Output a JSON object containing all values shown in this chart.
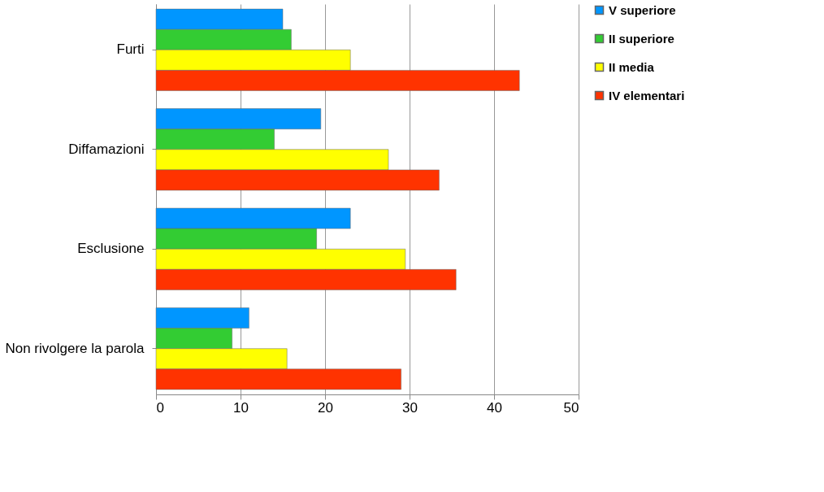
{
  "chart_data": {
    "type": "bar",
    "orientation": "horizontal",
    "categories": [
      "Furti",
      "Diffamazioni",
      "Esclusione",
      "Non rivolgere la parola"
    ],
    "series": [
      {
        "name": "V superiore",
        "color": "#0096ff",
        "values": [
          15,
          19.5,
          23,
          11
        ]
      },
      {
        "name": "II superiore",
        "color": "#33cc33",
        "values": [
          16,
          14,
          19,
          9
        ]
      },
      {
        "name": "II media",
        "color": "#ffff00",
        "values": [
          23,
          27.5,
          29.5,
          15.5
        ]
      },
      {
        "name": "IV elementari",
        "color": "#ff3300",
        "values": [
          43,
          33.5,
          35.5,
          29
        ]
      }
    ],
    "xlim": [
      0,
      50
    ],
    "xticks": [
      0,
      10,
      20,
      30,
      40,
      50
    ],
    "grid": "x",
    "legend": "right"
  }
}
